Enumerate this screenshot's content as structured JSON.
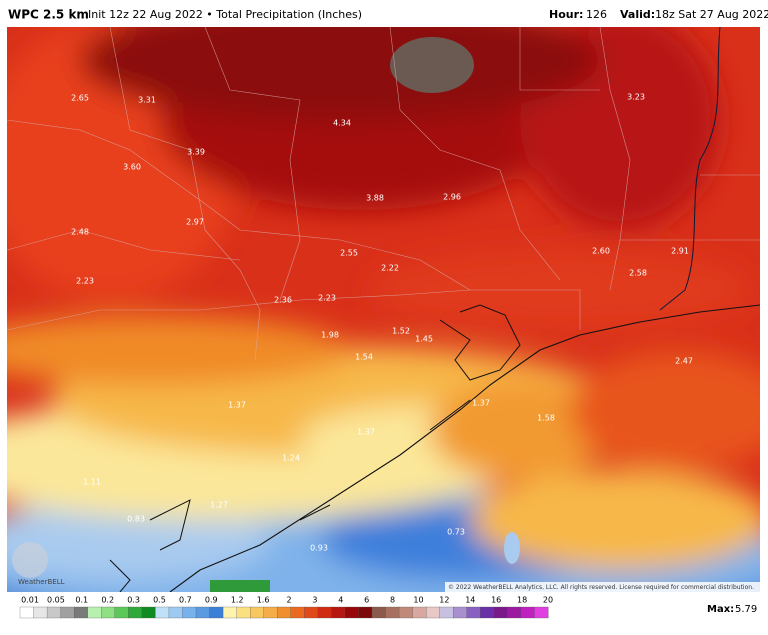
{
  "header": {
    "title": "WPC 2.5 km",
    "subtitle": "Init 12z 22 Aug 2022 • Total Precipitation (Inches)",
    "hour_label": "Hour:",
    "hour": "126",
    "valid_label": "Valid:",
    "valid": "18z Sat 27 Aug 2022"
  },
  "map": {
    "labels": [
      "2.65",
      "3.31",
      "3.23",
      "4.34",
      "3.60",
      "3.39",
      "3.88",
      "2.96",
      "2.97",
      "2.48",
      "2.55",
      "2.22",
      "2.60",
      "2.91",
      "2.58",
      "2.23",
      "2.36",
      "2.23",
      "1.98",
      "1.52",
      "1.45",
      "1.54",
      "2.47",
      "1.37",
      "1.37",
      "1.58",
      "1.37",
      "1.24",
      "1.11",
      "1.27",
      "0.83",
      "0.73",
      "0.93"
    ],
    "copyright": "© 2022 WeatherBELL Analytics, LLC. All rights reserved. License required for commercial distribution.",
    "logo": "WeatherBELL"
  },
  "legend": {
    "ticks": [
      "0.01",
      "0.05",
      "0.1",
      "0.2",
      "0.3",
      "0.5",
      "0.7",
      "0.9",
      "1.2",
      "1.6",
      "2",
      "3",
      "4",
      "6",
      "8",
      "10",
      "12",
      "14",
      "16",
      "18",
      "20"
    ],
    "max_label": "Max:",
    "max": "5.79"
  }
}
